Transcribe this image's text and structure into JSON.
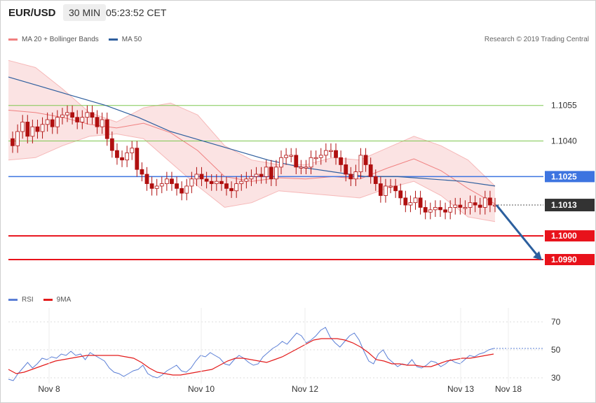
{
  "header": {
    "symbol": "EUR/USD",
    "timeframe": "30 MIN",
    "time": "05:23:52 CET"
  },
  "legend_main": {
    "bb_label": "MA 20 + Bollinger Bands",
    "ma50_label": "MA 50",
    "bb_color": "#f08080",
    "ma50_color": "#2f5f9e"
  },
  "credit": "Research © 2019 Trading Central",
  "legend_rsi": {
    "rsi_label": "RSI",
    "ma_label": "9MA",
    "rsi_color": "#5b7fd6",
    "ma_color": "#e31b1b"
  },
  "colors": {
    "green_level": "#7ec850",
    "blue_level": "#3d74e0",
    "red_level": "#e8121b",
    "dark_label": "#333333",
    "band_fill": "#fbe3e3",
    "candle": "#b01010"
  },
  "chart_data": [
    {
      "type": "candlestick",
      "title": "",
      "ylim": [
        1.0972,
        1.108
      ],
      "x_ticks": [
        "Nov 8",
        "Nov 10",
        "Nov 12",
        "Nov 13",
        "Nov 18"
      ],
      "price_levels": [
        {
          "value": 1.1055,
          "label": "1.1055",
          "style": "green"
        },
        {
          "value": 1.104,
          "label": "1.1040",
          "style": "green"
        },
        {
          "value": 1.1025,
          "label": "1.1025",
          "style": "blue"
        },
        {
          "value": 1.1013,
          "label": "1.1013",
          "style": "current"
        },
        {
          "value": 1.1,
          "label": "1.1000",
          "style": "red"
        },
        {
          "value": 1.099,
          "label": "1.0990",
          "style": "red"
        }
      ],
      "forecast_arrow": {
        "from": 1.1013,
        "to": 1.099
      },
      "close": [
        1.1038,
        1.1044,
        1.1048,
        1.1042,
        1.1046,
        1.1044,
        1.1047,
        1.1049,
        1.1046,
        1.105,
        1.1051,
        1.1052,
        1.105,
        1.1048,
        1.105,
        1.1052,
        1.105,
        1.1046,
        1.1049,
        1.1041,
        1.1036,
        1.1033,
        1.1032,
        1.1035,
        1.1037,
        1.1028,
        1.1026,
        1.1022,
        1.102,
        1.1021,
        1.1022,
        1.1024,
        1.1022,
        1.102,
        1.1018,
        1.1021,
        1.1024,
        1.1026,
        1.1024,
        1.1023,
        1.1022,
        1.1023,
        1.1022,
        1.102,
        1.1019,
        1.1022,
        1.1023,
        1.1024,
        1.1025,
        1.1026,
        1.1025,
        1.1029,
        1.1024,
        1.1029,
        1.1033,
        1.1034,
        1.1034,
        1.1029,
        1.1029,
        1.1029,
        1.1033,
        1.1033,
        1.1034,
        1.1036,
        1.1036,
        1.1033,
        1.103,
        1.1026,
        1.1024,
        1.1027,
        1.1034,
        1.103,
        1.1025,
        1.1022,
        1.1017,
        1.1021,
        1.1021,
        1.1019,
        1.1016,
        1.1013,
        1.1014,
        1.1016,
        1.1012,
        1.101,
        1.1011,
        1.1012,
        1.1011,
        1.101,
        1.1012,
        1.1013,
        1.1012,
        1.1012,
        1.1014,
        1.1013,
        1.1012,
        1.1016,
        1.1013,
        1.1013
      ],
      "ma50": [
        1.1067,
        1.1063,
        1.1059,
        1.1055,
        1.105,
        1.1044,
        1.104,
        1.1036,
        1.1032,
        1.1029,
        1.1027,
        1.1025,
        1.1025,
        1.1024,
        1.1023,
        1.1021
      ],
      "bb_upper": [
        1.1074,
        1.1071,
        1.1062,
        1.1052,
        1.1048,
        1.1054,
        1.1056,
        1.1051,
        1.1038,
        1.1032,
        1.103,
        1.103,
        1.1033,
        1.1032,
        1.1037,
        1.1042,
        1.1038,
        1.1032,
        1.1021
      ],
      "bb_lower": [
        1.1032,
        1.1033,
        1.1038,
        1.1042,
        1.1043,
        1.1041,
        1.1031,
        1.1021,
        1.1012,
        1.1014,
        1.1019,
        1.1018,
        1.1017,
        1.1016,
        1.102,
        1.1023,
        1.1017,
        1.1008,
        1.1006
      ]
    },
    {
      "type": "line",
      "title": "",
      "ylim": [
        20,
        80
      ],
      "y_ticks": [
        30,
        50,
        70
      ],
      "series": [
        {
          "name": "RSI",
          "values": [
            29,
            28,
            33,
            37,
            41,
            37,
            40,
            44,
            43,
            45,
            44,
            47,
            46,
            49,
            46,
            47,
            43,
            48,
            46,
            44,
            42,
            37,
            34,
            33,
            31,
            33,
            35,
            36,
            39,
            33,
            31,
            30,
            32,
            35,
            37,
            39,
            35,
            34,
            37,
            42,
            46,
            45,
            48,
            46,
            44,
            40,
            39,
            43,
            46,
            44,
            41,
            39,
            40,
            45,
            48,
            51,
            53,
            56,
            54,
            58,
            62,
            60,
            55,
            57,
            60,
            64,
            66,
            59,
            55,
            52,
            56,
            60,
            62,
            57,
            49,
            42,
            40,
            47,
            50,
            44,
            41,
            38,
            40,
            39,
            43,
            38,
            37,
            39,
            42,
            41,
            38,
            40,
            43,
            41,
            40,
            43,
            46,
            45,
            47,
            48,
            50,
            51
          ]
        },
        {
          "name": "9MA",
          "values": [
            36,
            33,
            34,
            36,
            38,
            40,
            42,
            43,
            44,
            45,
            46,
            46,
            46,
            46,
            46,
            45,
            44,
            41,
            37,
            34,
            33,
            32,
            32,
            33,
            34,
            35,
            36,
            39,
            42,
            44,
            44,
            43,
            42,
            41,
            43,
            45,
            48,
            51,
            54,
            57,
            58,
            58,
            58,
            57,
            55,
            52,
            48,
            43,
            42,
            40,
            40,
            39,
            39,
            38,
            38,
            40,
            42,
            43,
            44,
            44,
            45,
            46,
            47
          ]
        }
      ]
    }
  ]
}
